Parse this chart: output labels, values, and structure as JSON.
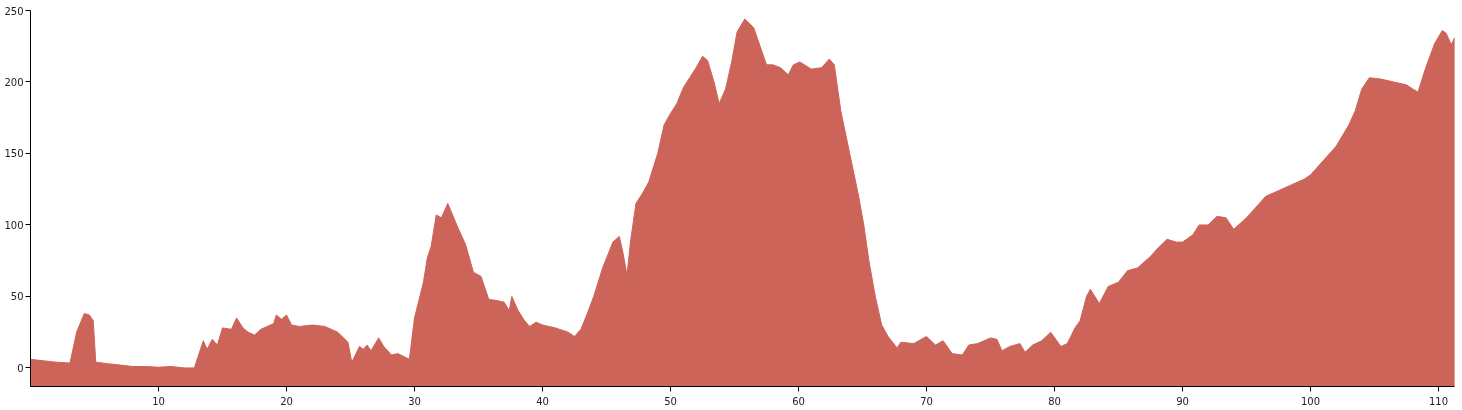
{
  "chart_data": {
    "type": "area",
    "color": "#cd6459",
    "xlim": [
      0,
      111.25
    ],
    "ylim": [
      -13,
      250
    ],
    "xticks": [
      10,
      20,
      30,
      40,
      50,
      60,
      70,
      80,
      90,
      100,
      110
    ],
    "yticks": [
      0,
      50,
      100,
      150,
      200,
      250
    ],
    "grid": false,
    "x": [
      0,
      1,
      2,
      3,
      3.1,
      3.6,
      4.2,
      4.6,
      4.9,
      5.1,
      6,
      7,
      8,
      9,
      10,
      11,
      12,
      12.8,
      13.5,
      13.8,
      14.2,
      14.6,
      15,
      15.7,
      16.1,
      16.6,
      17,
      17.5,
      18,
      19,
      19.2,
      19.6,
      20,
      20.4,
      21,
      22,
      23,
      24,
      24.8,
      25.1,
      25.7,
      26,
      26.3,
      26.6,
      27.2,
      27.6,
      28.2,
      28.7,
      29.6,
      30,
      30.7,
      31,
      31.3,
      31.7,
      32.1,
      32.6,
      33.4,
      34,
      34.6,
      35.2,
      35.8,
      36.5,
      37,
      37.4,
      37.6,
      38.1,
      38.6,
      39,
      39.5,
      40,
      41,
      42,
      42.5,
      43,
      43.5,
      44,
      44.7,
      45.5,
      46,
      46.3,
      46.6,
      46.9,
      47.3,
      47.8,
      48.3,
      49,
      49.5,
      50,
      50.5,
      51,
      51.5,
      52,
      52.5,
      52.9,
      53.4,
      53.8,
      54.3,
      54.8,
      55.2,
      55.8,
      56.5,
      57,
      57.5,
      58,
      58.6,
      59.2,
      59.6,
      60.1,
      61,
      61.8,
      62.4,
      62.8,
      63.3,
      64,
      64.7,
      65.1,
      65.5,
      66,
      66.5,
      67,
      67.7,
      68,
      69,
      70,
      70.7,
      71.3,
      72,
      72.8,
      73.3,
      74,
      75,
      75.5,
      75.9,
      76.5,
      77.3,
      77.7,
      78.3,
      79,
      79.7,
      80.5,
      81,
      81.6,
      82,
      82.5,
      82.8,
      83.5,
      84.2,
      85,
      85.7,
      86.5,
      87.5,
      88,
      88.8,
      89.5,
      90,
      90.8,
      91.3,
      92,
      92.7,
      93.4,
      94,
      95,
      96,
      96.5,
      97.5,
      98.5,
      99.5,
      100,
      101,
      102,
      103,
      103.5,
      104,
      104.6,
      105.5,
      106.5,
      107.5,
      108,
      108.4,
      109,
      109.7,
      110.3,
      110.6,
      111,
      111.25
    ],
    "values": [
      6,
      5,
      4,
      3.5,
      4,
      25,
      38,
      37,
      33,
      4,
      3,
      2,
      1,
      1,
      0.5,
      1,
      0,
      0,
      19,
      13,
      20,
      16,
      28,
      27,
      35,
      28,
      25,
      23,
      27,
      31,
      37,
      34,
      37,
      30,
      29,
      30,
      29,
      25,
      18,
      4,
      15,
      13,
      16,
      12,
      21,
      15,
      9,
      10,
      6,
      35,
      60,
      77,
      85,
      107,
      105,
      115,
      98,
      86,
      67,
      64,
      48,
      47,
      46,
      40,
      50,
      40,
      33,
      29,
      32,
      30,
      28,
      25,
      22,
      27,
      38,
      50,
      70,
      88,
      92,
      80,
      65,
      90,
      115,
      122,
      130,
      150,
      170,
      178,
      185,
      196,
      203,
      210,
      218,
      215,
      200,
      185,
      195,
      215,
      235,
      244,
      238,
      225,
      212,
      212,
      210,
      205,
      212,
      214,
      209,
      210,
      216,
      212,
      180,
      150,
      120,
      100,
      75,
      50,
      30,
      22,
      14,
      18,
      17,
      22,
      16,
      19,
      10,
      9,
      16,
      17,
      21,
      20,
      12,
      15,
      17,
      11,
      16,
      19,
      25,
      15,
      17,
      28,
      33,
      50,
      55,
      45,
      57,
      60,
      68,
      70,
      78,
      83,
      90,
      88,
      88,
      93,
      100,
      100,
      106,
      105,
      97,
      105,
      115,
      120,
      124,
      128,
      132,
      135,
      145,
      155,
      170,
      180,
      195,
      203,
      202,
      200,
      198,
      195,
      193,
      210,
      227,
      236,
      234,
      226,
      231
    ]
  }
}
